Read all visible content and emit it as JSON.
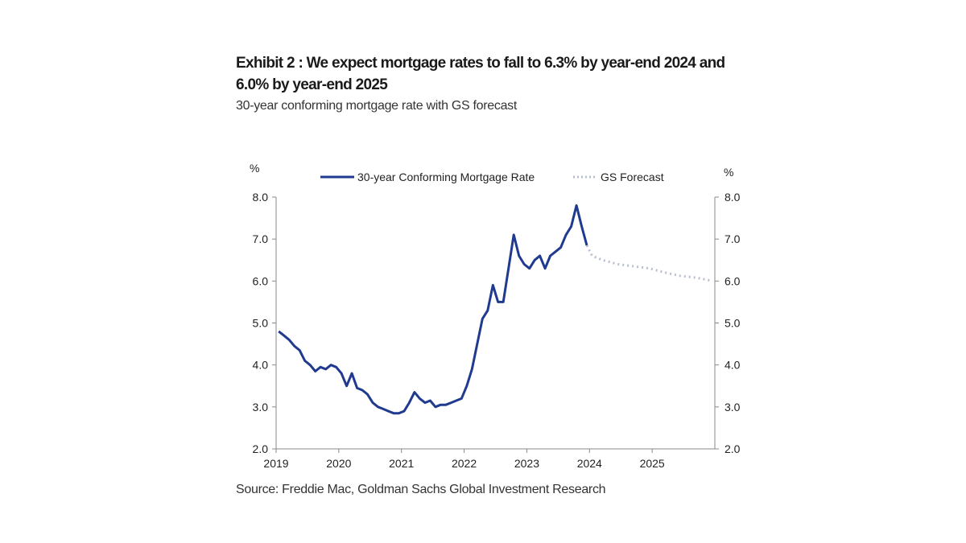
{
  "title": "Exhibit 2 : We expect mortgage rates to fall to 6.3% by year-end 2024 and 6.0% by year-end 2025",
  "subtitle": "30-year conforming mortgage rate with GS forecast",
  "source": "Source: Freddie Mac, Goldman Sachs Global Investment Research",
  "chart_data": {
    "type": "line",
    "title": "Exhibit 2 : We expect mortgage rates to fall to 6.3% by year-end 2024 and 6.0% by year-end 2025",
    "subtitle": "30-year conforming mortgage rate with GS forecast",
    "ylabel_left": "%",
    "ylabel_right": "%",
    "ylim": [
      2.0,
      8.0
    ],
    "yticks": [
      "2.0",
      "3.0",
      "4.0",
      "5.0",
      "6.0",
      "7.0",
      "8.0"
    ],
    "xlim": [
      "2019-01",
      "2026-01"
    ],
    "xticks": [
      "2019",
      "2020",
      "2021",
      "2022",
      "2023",
      "2024",
      "2025"
    ],
    "grid": false,
    "legend_position": "top",
    "series": [
      {
        "name": "30-year Conforming Mortgage Rate",
        "color": "#1f3a8f",
        "style": "solid",
        "points": [
          [
            "2019-01",
            4.8
          ],
          [
            "2019-02",
            4.7
          ],
          [
            "2019-03",
            4.6
          ],
          [
            "2019-04",
            4.45
          ],
          [
            "2019-05",
            4.35
          ],
          [
            "2019-06",
            4.1
          ],
          [
            "2019-07",
            4.0
          ],
          [
            "2019-08",
            3.85
          ],
          [
            "2019-09",
            3.95
          ],
          [
            "2019-10",
            3.9
          ],
          [
            "2019-11",
            4.0
          ],
          [
            "2019-12",
            3.95
          ],
          [
            "2020-01",
            3.8
          ],
          [
            "2020-02",
            3.5
          ],
          [
            "2020-03",
            3.8
          ],
          [
            "2020-04",
            3.45
          ],
          [
            "2020-05",
            3.4
          ],
          [
            "2020-06",
            3.3
          ],
          [
            "2020-07",
            3.1
          ],
          [
            "2020-08",
            3.0
          ],
          [
            "2020-09",
            2.95
          ],
          [
            "2020-10",
            2.9
          ],
          [
            "2020-11",
            2.85
          ],
          [
            "2020-12",
            2.85
          ],
          [
            "2021-01",
            2.9
          ],
          [
            "2021-02",
            3.1
          ],
          [
            "2021-03",
            3.35
          ],
          [
            "2021-04",
            3.2
          ],
          [
            "2021-05",
            3.1
          ],
          [
            "2021-06",
            3.15
          ],
          [
            "2021-07",
            3.0
          ],
          [
            "2021-08",
            3.05
          ],
          [
            "2021-09",
            3.05
          ],
          [
            "2021-10",
            3.1
          ],
          [
            "2021-11",
            3.15
          ],
          [
            "2021-12",
            3.2
          ],
          [
            "2022-01",
            3.5
          ],
          [
            "2022-02",
            3.9
          ],
          [
            "2022-03",
            4.5
          ],
          [
            "2022-04",
            5.1
          ],
          [
            "2022-05",
            5.3
          ],
          [
            "2022-06",
            5.9
          ],
          [
            "2022-07",
            5.5
          ],
          [
            "2022-08",
            5.5
          ],
          [
            "2022-09",
            6.3
          ],
          [
            "2022-10",
            7.1
          ],
          [
            "2022-11",
            6.6
          ],
          [
            "2022-12",
            6.4
          ],
          [
            "2023-01",
            6.3
          ],
          [
            "2023-02",
            6.5
          ],
          [
            "2023-03",
            6.6
          ],
          [
            "2023-04",
            6.3
          ],
          [
            "2023-05",
            6.6
          ],
          [
            "2023-06",
            6.7
          ],
          [
            "2023-07",
            6.8
          ],
          [
            "2023-08",
            7.1
          ],
          [
            "2023-09",
            7.3
          ],
          [
            "2023-10",
            7.8
          ],
          [
            "2023-11",
            7.3
          ],
          [
            "2023-12",
            6.85
          ]
        ]
      },
      {
        "name": "GS Forecast",
        "color": "#b8bfd0",
        "style": "dotted",
        "points": [
          [
            "2023-12",
            6.85
          ],
          [
            "2024-01",
            6.6
          ],
          [
            "2024-03",
            6.5
          ],
          [
            "2024-06",
            6.4
          ],
          [
            "2024-09",
            6.35
          ],
          [
            "2024-12",
            6.3
          ],
          [
            "2025-03",
            6.2
          ],
          [
            "2025-06",
            6.12
          ],
          [
            "2025-09",
            6.08
          ],
          [
            "2025-12",
            6.0
          ]
        ]
      }
    ]
  }
}
